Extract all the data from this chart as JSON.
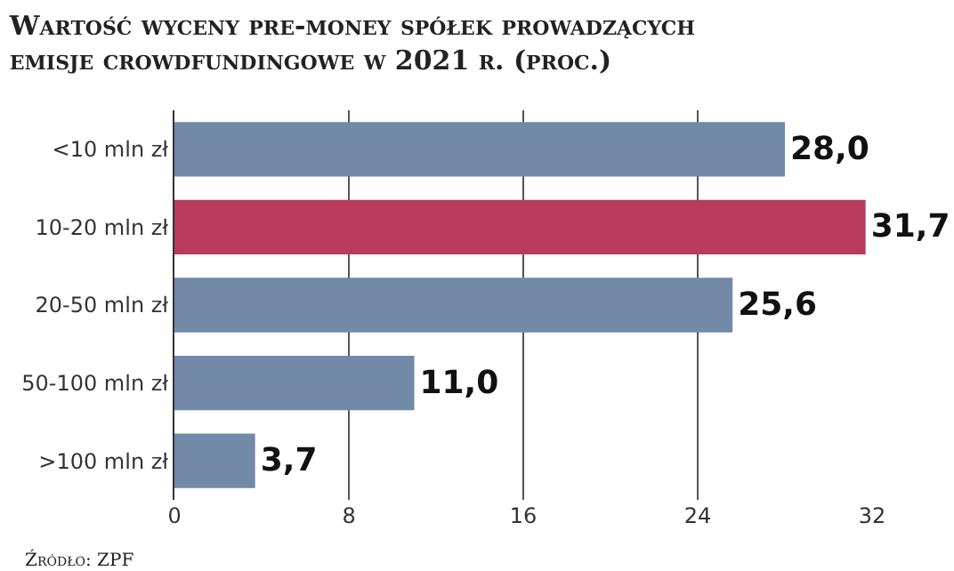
{
  "chart_data": {
    "type": "bar",
    "orientation": "horizontal",
    "title": "Wartość wyceny pre-money spółek prowadzących emisje crowdfundingowe w 2021 r. (proc.)",
    "categories": [
      "<10 mln zł",
      "10-20 mln zł",
      "20-50 mln zł",
      "50-100 mln zł",
      ">100 mln zł"
    ],
    "values": [
      28.0,
      31.7,
      25.6,
      11.0,
      3.7
    ],
    "value_labels": [
      "28,0",
      "31,7",
      "25,6",
      "11,0",
      "3,7"
    ],
    "colors": [
      "#7289a8",
      "#b83a5c",
      "#7289a8",
      "#7289a8",
      "#7289a8"
    ],
    "xlim": [
      0,
      32
    ],
    "xticks": [
      0,
      8,
      16,
      24,
      32
    ],
    "grid": "x",
    "annotations": [
      "Źródło: ZPF"
    ]
  }
}
